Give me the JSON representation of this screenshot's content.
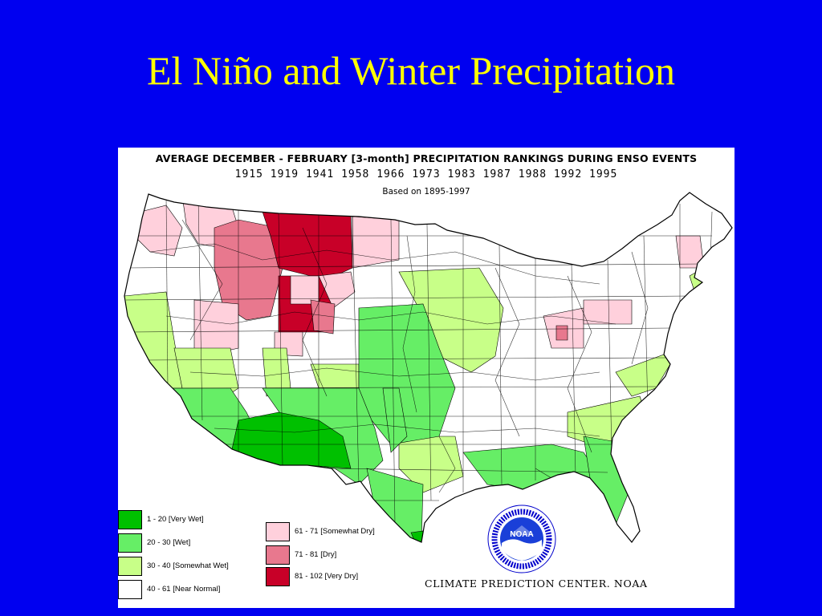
{
  "slide": {
    "title": "El Niño and Winter Precipitation"
  },
  "figure": {
    "title": "AVERAGE DECEMBER - FEBRUARY [3-month] PRECIPITATION RANKINGS DURING ENSO EVENTS",
    "years": "1915 1919 1941 1958 1966 1973 1983 1987 1988 1992 1995",
    "basis": "Based on 1895-1997",
    "credit": "CLIMATE PREDICTION CENTER. NOAA",
    "logo_text": "NOAA",
    "legend": [
      {
        "label": "1 - 20 [Very Wet]",
        "color": "#00c000"
      },
      {
        "label": "20 - 30 [Wet]",
        "color": "#66ee66"
      },
      {
        "label": "30 - 40 [Somewhat Wet]",
        "color": "#c8ff88"
      },
      {
        "label": "40 - 61 [Near Normal]",
        "color": "#ffffff"
      },
      {
        "label": "61 - 71 [Somewhat Dry]",
        "color": "#ffd0dc"
      },
      {
        "label": "71 - 81 [Dry]",
        "color": "#e8788e"
      },
      {
        "label": "81 - 102 [Very Dry]",
        "color": "#c80028"
      }
    ]
  }
}
